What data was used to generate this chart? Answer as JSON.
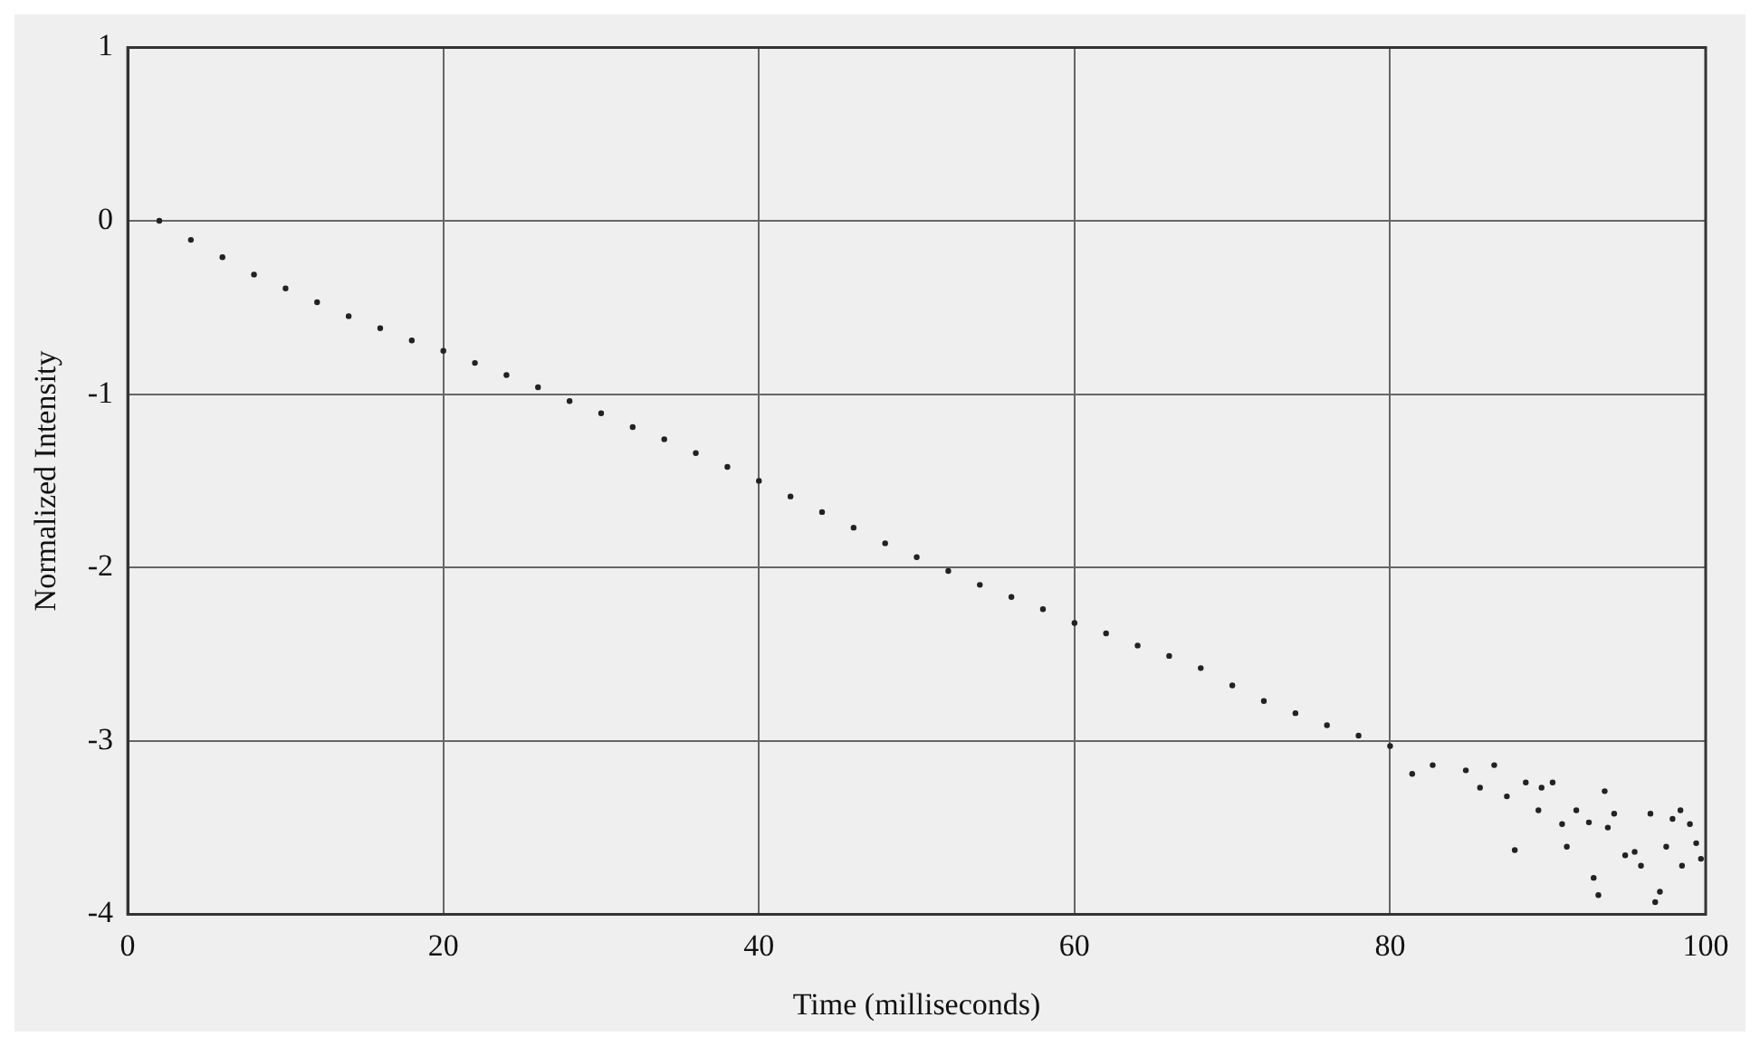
{
  "chart_data": {
    "type": "scatter",
    "xlabel": "Time (milliseconds)",
    "ylabel": "Normalized Intensity",
    "xlim": [
      0,
      100
    ],
    "xticks": [
      0,
      20,
      40,
      60,
      80,
      100
    ],
    "ylim": [
      -4,
      1
    ],
    "yticks": [
      -4,
      -3,
      -2,
      -1,
      0,
      1
    ],
    "grid": true,
    "legend": false,
    "marker": "circle",
    "series": [
      {
        "color": "#222222",
        "x": [
          2,
          4,
          6,
          8,
          10,
          12,
          14,
          16,
          18,
          20,
          22,
          24,
          26,
          28,
          30,
          32,
          34,
          36,
          38,
          40,
          42,
          44,
          46,
          48,
          50,
          52,
          54,
          56,
          58,
          60,
          62,
          64,
          66,
          68,
          70,
          72,
          74,
          76,
          78,
          80,
          81.4,
          82.7,
          84.8,
          85.7,
          86.6,
          87.4,
          87.9,
          88.6,
          89.4,
          89.6,
          90.3,
          90.9,
          91.2,
          91.8,
          92.6,
          92.9,
          93.2,
          93.6,
          93.8,
          94.2,
          94.9,
          95.5,
          95.9,
          96.5,
          96.8,
          97.1,
          97.5,
          97.9,
          98.4,
          98.5,
          99.0,
          99.4,
          99.7
        ],
        "values": [
          0,
          -0.11,
          -0.21,
          -0.31,
          -0.39,
          -0.47,
          -0.55,
          -0.62,
          -0.69,
          -0.75,
          -0.82,
          -0.89,
          -0.96,
          -1.04,
          -1.11,
          -1.19,
          -1.26,
          -1.34,
          -1.42,
          -1.5,
          -1.59,
          -1.68,
          -1.77,
          -1.86,
          -1.94,
          -2.02,
          -2.1,
          -2.17,
          -2.24,
          -2.32,
          -2.38,
          -2.45,
          -2.51,
          -2.58,
          -2.68,
          -2.77,
          -2.84,
          -2.91,
          -2.97,
          -3.03,
          -3.19,
          -3.14,
          -3.17,
          -3.27,
          -3.14,
          -3.32,
          -3.63,
          -3.24,
          -3.4,
          -3.27,
          -3.24,
          -3.48,
          -3.61,
          -3.4,
          -3.47,
          -3.79,
          -3.89,
          -3.29,
          -3.5,
          -3.42,
          -3.66,
          -3.64,
          -3.72,
          -3.42,
          -3.93,
          -3.87,
          -3.61,
          -3.45,
          -3.4,
          -3.72,
          -3.48,
          -3.59,
          -3.68
        ]
      }
    ]
  }
}
